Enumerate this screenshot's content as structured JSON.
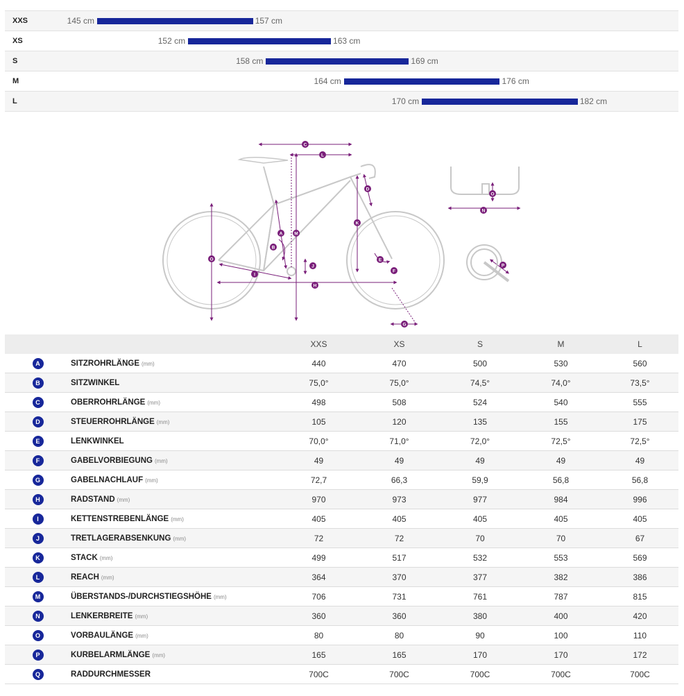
{
  "colors": {
    "accent": "#17279a",
    "diagram": "#7a1f7a",
    "bike_line": "#c8c8c8"
  },
  "size_ranges": [
    {
      "size": "XXS",
      "min": "145 cm",
      "max": "157 cm",
      "min_cm": 145,
      "max_cm": 157
    },
    {
      "size": "XS",
      "min": "152 cm",
      "max": "163 cm",
      "min_cm": 152,
      "max_cm": 163
    },
    {
      "size": "S",
      "min": "158 cm",
      "max": "169 cm",
      "min_cm": 158,
      "max_cm": 169
    },
    {
      "size": "M",
      "min": "164 cm",
      "max": "176 cm",
      "min_cm": 164,
      "max_cm": 176
    },
    {
      "size": "L",
      "min": "170 cm",
      "max": "182 cm",
      "min_cm": 170,
      "max_cm": 182
    }
  ],
  "diagram": {
    "labels": [
      "A",
      "B",
      "C",
      "D",
      "E",
      "F",
      "G",
      "H",
      "I",
      "J",
      "K",
      "L",
      "M",
      "N",
      "O",
      "P"
    ]
  },
  "table": {
    "headers": [
      "XXS",
      "XS",
      "S",
      "M",
      "L"
    ],
    "rows": [
      {
        "letter": "A",
        "name": "SITZROHRLÄNGE",
        "unit": "(mm)",
        "values": [
          "440",
          "470",
          "500",
          "530",
          "560"
        ]
      },
      {
        "letter": "B",
        "name": "SITZWINKEL",
        "unit": "",
        "values": [
          "75,0°",
          "75,0°",
          "74,5°",
          "74,0°",
          "73,5°"
        ]
      },
      {
        "letter": "C",
        "name": "OBERROHRLÄNGE",
        "unit": "(mm)",
        "values": [
          "498",
          "508",
          "524",
          "540",
          "555"
        ]
      },
      {
        "letter": "D",
        "name": "STEUERROHRLÄNGE",
        "unit": "(mm)",
        "values": [
          "105",
          "120",
          "135",
          "155",
          "175"
        ]
      },
      {
        "letter": "E",
        "name": "LENKWINKEL",
        "unit": "",
        "values": [
          "70,0°",
          "71,0°",
          "72,0°",
          "72,5°",
          "72,5°"
        ]
      },
      {
        "letter": "F",
        "name": "GABELVORBIEGUNG",
        "unit": "(mm)",
        "values": [
          "49",
          "49",
          "49",
          "49",
          "49"
        ]
      },
      {
        "letter": "G",
        "name": "GABELNACHLAUF",
        "unit": "(mm)",
        "values": [
          "72,7",
          "66,3",
          "59,9",
          "56,8",
          "56,8"
        ]
      },
      {
        "letter": "H",
        "name": "RADSTAND",
        "unit": "(mm)",
        "values": [
          "970",
          "973",
          "977",
          "984",
          "996"
        ]
      },
      {
        "letter": "I",
        "name": "KETTENSTREBENLÄNGE",
        "unit": "(mm)",
        "values": [
          "405",
          "405",
          "405",
          "405",
          "405"
        ]
      },
      {
        "letter": "J",
        "name": "TRETLAGERABSENKUNG",
        "unit": "(mm)",
        "values": [
          "72",
          "72",
          "70",
          "70",
          "67"
        ]
      },
      {
        "letter": "K",
        "name": "STACK",
        "unit": "(mm)",
        "values": [
          "499",
          "517",
          "532",
          "553",
          "569"
        ]
      },
      {
        "letter": "L",
        "name": "REACH",
        "unit": "(mm)",
        "values": [
          "364",
          "370",
          "377",
          "382",
          "386"
        ]
      },
      {
        "letter": "M",
        "name": "ÜBERSTANDS-/DURCHSTIEGSHÖHE",
        "unit": "(mm)",
        "values": [
          "706",
          "731",
          "761",
          "787",
          "815"
        ]
      },
      {
        "letter": "N",
        "name": "LENKERBREITE",
        "unit": "(mm)",
        "values": [
          "360",
          "360",
          "380",
          "400",
          "420"
        ]
      },
      {
        "letter": "O",
        "name": "VORBAULÄNGE",
        "unit": "(mm)",
        "values": [
          "80",
          "80",
          "90",
          "100",
          "110"
        ]
      },
      {
        "letter": "P",
        "name": "KURBELARMLÄNGE",
        "unit": "(mm)",
        "values": [
          "165",
          "165",
          "170",
          "170",
          "172"
        ]
      },
      {
        "letter": "Q",
        "name": "RADDURCHMESSER",
        "unit": "",
        "values": [
          "700C",
          "700C",
          "700C",
          "700C",
          "700C"
        ]
      }
    ]
  }
}
